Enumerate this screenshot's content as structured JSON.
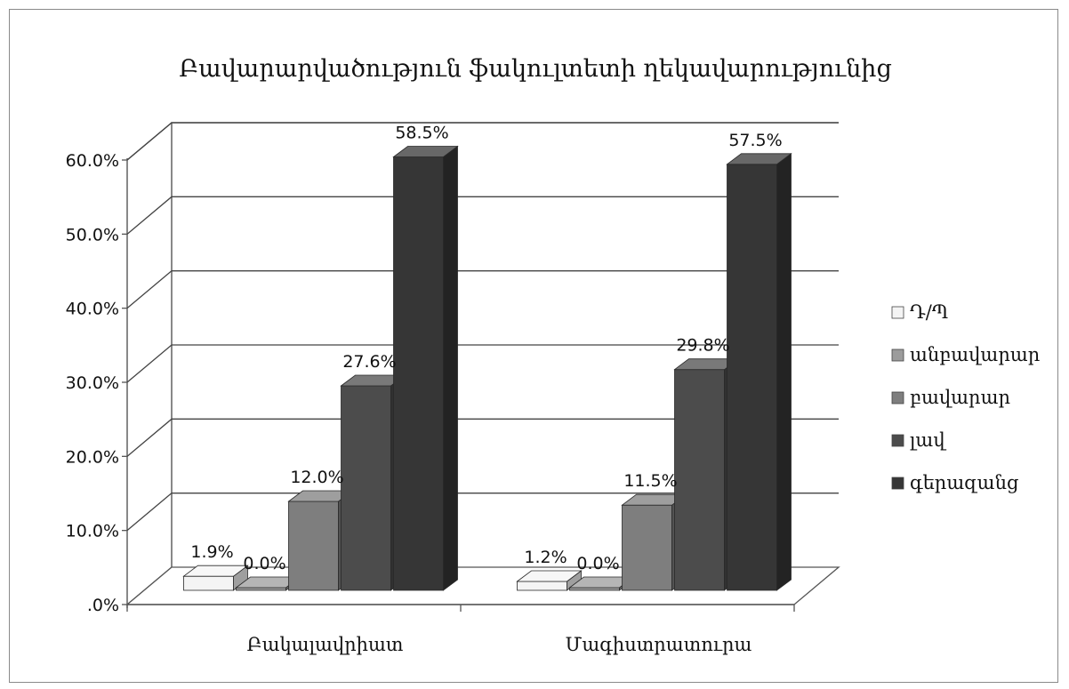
{
  "chart_data": {
    "type": "bar",
    "title": "Բավարարվածություն ֆակուլտետի ղեկավարությունից",
    "categories": [
      "Բակալավրիատ",
      "Մագիստրատուրա"
    ],
    "series": [
      {
        "name": "Դ/Պ",
        "values": [
          1.9,
          1.2
        ],
        "color": "#f4f4f4"
      },
      {
        "name": "անբավարար",
        "values": [
          0.0,
          0.0
        ],
        "color": "#9c9c9c"
      },
      {
        "name": "բավարար",
        "values": [
          12.0,
          11.5
        ],
        "color": "#7e7e7e"
      },
      {
        "name": "լավ",
        "values": [
          27.6,
          29.8
        ],
        "color": "#4c4c4c"
      },
      {
        "name": "գերազանց",
        "values": [
          58.5,
          57.5
        ],
        "color": "#363636"
      }
    ],
    "data_labels": [
      [
        "1.9%",
        "0.0%",
        "12.0%",
        "27.6%",
        "58.5%"
      ],
      [
        "1.2%",
        "0.0%",
        "11.5%",
        "29.8%",
        "57.5%"
      ]
    ],
    "yticks": [
      ".0%",
      "10.0%",
      "20.0%",
      "30.0%",
      "40.0%",
      "50.0%",
      "60.0%"
    ],
    "ylim": [
      0,
      60
    ],
    "ytick_step": 10,
    "xlabel": "",
    "ylabel": "",
    "grid": true,
    "legend": "right",
    "style": "3d-column"
  }
}
